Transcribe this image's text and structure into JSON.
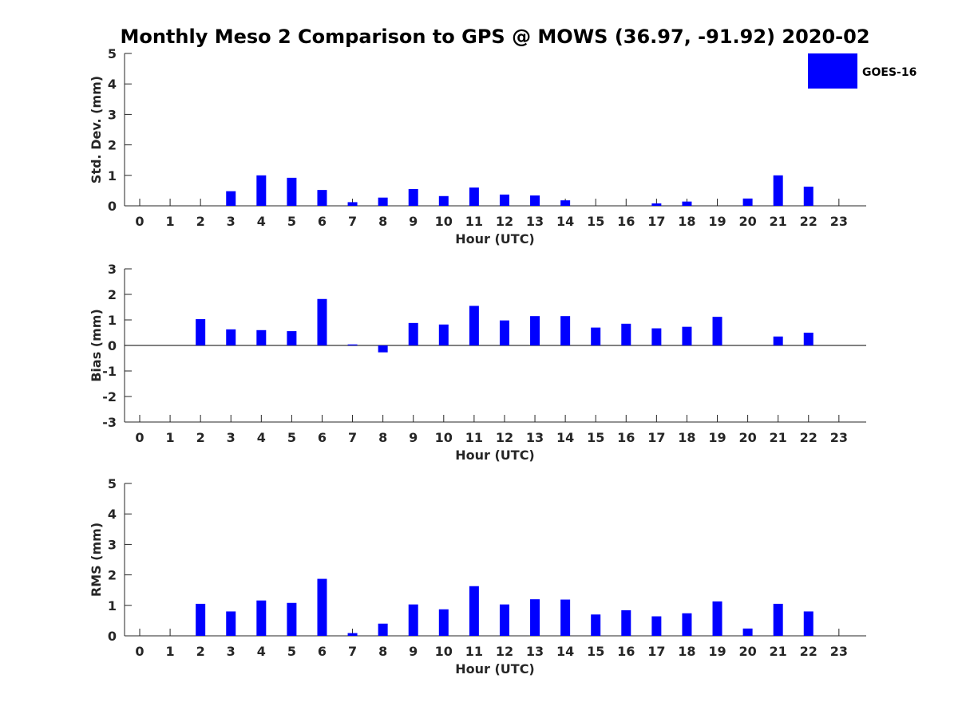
{
  "title": "Monthly Meso 2 Comparison to GPS @ MOWS (36.97, -91.92) 2020-02",
  "legend": {
    "label": "GOES-16",
    "color": "#0000ff",
    "placement": "top-right"
  },
  "colors": {
    "bar": "#0000ff",
    "axis": "#262626"
  },
  "chart_data": [
    {
      "type": "bar",
      "xlabel": "Hour (UTC)",
      "ylabel": "Std. Dev. (mm)",
      "ylim": [
        0,
        5
      ],
      "yticks": [
        "0",
        "1",
        "2",
        "3",
        "4",
        "5"
      ],
      "categories": [
        "0",
        "1",
        "2",
        "3",
        "4",
        "5",
        "6",
        "7",
        "8",
        "9",
        "10",
        "11",
        "12",
        "13",
        "14",
        "15",
        "16",
        "17",
        "18",
        "19",
        "20",
        "21",
        "22",
        "23"
      ],
      "series": [
        {
          "name": "GOES-16",
          "values": [
            0,
            0,
            0,
            0.48,
            1.0,
            0.92,
            0.52,
            0.12,
            0.27,
            0.55,
            0.32,
            0.6,
            0.37,
            0.34,
            0.18,
            0,
            0,
            0.08,
            0.14,
            0,
            0.24,
            1.0,
            0.63,
            0
          ]
        }
      ]
    },
    {
      "type": "bar",
      "xlabel": "Hour (UTC)",
      "ylabel": "Bias (mm)",
      "ylim": [
        -3,
        3
      ],
      "yticks": [
        "-3",
        "-2",
        "-1",
        "0",
        "1",
        "2",
        "3"
      ],
      "categories": [
        "0",
        "1",
        "2",
        "3",
        "4",
        "5",
        "6",
        "7",
        "8",
        "9",
        "10",
        "11",
        "12",
        "13",
        "14",
        "15",
        "16",
        "17",
        "18",
        "19",
        "20",
        "21",
        "22",
        "23"
      ],
      "series": [
        {
          "name": "GOES-16",
          "values": [
            0,
            0,
            1.03,
            0.63,
            0.6,
            0.56,
            1.82,
            0.04,
            -0.27,
            0.88,
            0.82,
            1.55,
            0.98,
            1.15,
            1.15,
            0.7,
            0.85,
            0.67,
            0.73,
            1.12,
            0,
            0.35,
            0.5,
            0
          ]
        }
      ]
    },
    {
      "type": "bar",
      "xlabel": "Hour (UTC)",
      "ylabel": "RMS (mm)",
      "ylim": [
        0,
        5
      ],
      "yticks": [
        "0",
        "1",
        "2",
        "3",
        "4",
        "5"
      ],
      "categories": [
        "0",
        "1",
        "2",
        "3",
        "4",
        "5",
        "6",
        "7",
        "8",
        "9",
        "10",
        "11",
        "12",
        "13",
        "14",
        "15",
        "16",
        "17",
        "18",
        "19",
        "20",
        "21",
        "22",
        "23"
      ],
      "series": [
        {
          "name": "GOES-16",
          "values": [
            0,
            0,
            1.05,
            0.8,
            1.16,
            1.08,
            1.87,
            0.09,
            0.4,
            1.03,
            0.87,
            1.63,
            1.03,
            1.2,
            1.19,
            0.7,
            0.84,
            0.64,
            0.74,
            1.13,
            0.24,
            1.05,
            0.8,
            0
          ]
        }
      ]
    }
  ]
}
